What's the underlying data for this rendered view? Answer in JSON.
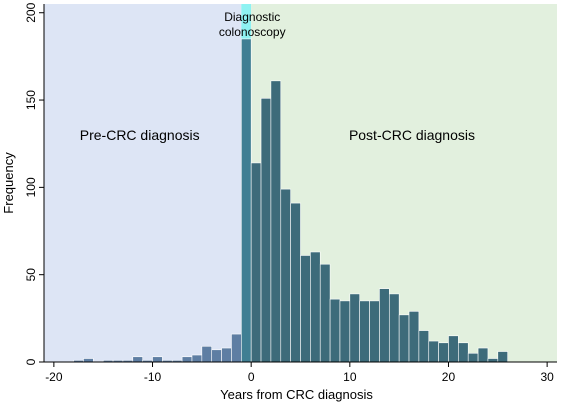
{
  "chart_data": {
    "type": "bar",
    "xlabel": "Years from CRC diagnosis",
    "ylabel": "Frequency",
    "xlim": [
      -21,
      31
    ],
    "ylim": [
      0,
      205
    ],
    "xticks": [
      -20,
      -10,
      0,
      10,
      20,
      30
    ],
    "yticks": [
      0,
      50,
      100,
      150,
      200
    ],
    "bin_width": 1,
    "bars": [
      {
        "x": -17.5,
        "y": 1
      },
      {
        "x": -16.5,
        "y": 2
      },
      {
        "x": -15.5,
        "y": 0
      },
      {
        "x": -14.5,
        "y": 1
      },
      {
        "x": -13.5,
        "y": 1
      },
      {
        "x": -12.5,
        "y": 1
      },
      {
        "x": -11.5,
        "y": 3
      },
      {
        "x": -10.5,
        "y": 1
      },
      {
        "x": -9.5,
        "y": 3
      },
      {
        "x": -8.5,
        "y": 1
      },
      {
        "x": -7.5,
        "y": 1
      },
      {
        "x": -6.5,
        "y": 3
      },
      {
        "x": -5.5,
        "y": 4
      },
      {
        "x": -4.5,
        "y": 9
      },
      {
        "x": -3.5,
        "y": 7
      },
      {
        "x": -2.5,
        "y": 8
      },
      {
        "x": -1.5,
        "y": 16
      },
      {
        "x": -0.5,
        "y": 185
      },
      {
        "x": 0.5,
        "y": 114
      },
      {
        "x": 1.5,
        "y": 151
      },
      {
        "x": 2.5,
        "y": 161
      },
      {
        "x": 3.5,
        "y": 99
      },
      {
        "x": 4.5,
        "y": 91
      },
      {
        "x": 5.5,
        "y": 61
      },
      {
        "x": 6.5,
        "y": 63
      },
      {
        "x": 7.5,
        "y": 56
      },
      {
        "x": 8.5,
        "y": 36
      },
      {
        "x": 9.5,
        "y": 35
      },
      {
        "x": 10.5,
        "y": 39
      },
      {
        "x": 11.5,
        "y": 35
      },
      {
        "x": 12.5,
        "y": 35
      },
      {
        "x": 13.5,
        "y": 42
      },
      {
        "x": 14.5,
        "y": 39
      },
      {
        "x": 15.5,
        "y": 27
      },
      {
        "x": 16.5,
        "y": 29
      },
      {
        "x": 17.5,
        "y": 18
      },
      {
        "x": 18.5,
        "y": 12
      },
      {
        "x": 19.5,
        "y": 11
      },
      {
        "x": 20.5,
        "y": 15
      },
      {
        "x": 21.5,
        "y": 11
      },
      {
        "x": 22.5,
        "y": 5
      },
      {
        "x": 23.5,
        "y": 8
      },
      {
        "x": 24.5,
        "y": 2
      },
      {
        "x": 25.5,
        "y": 6
      }
    ],
    "regions": [
      {
        "label": "Pre-CRC diagnosis",
        "x0": -21,
        "x1": -1,
        "color": "#dde5f5"
      },
      {
        "label": "Diagnostic colonoscopy",
        "x0": -1,
        "x1": 0,
        "color": "#8ef2f2"
      },
      {
        "label": "Post-CRC diagnosis",
        "x0": 0,
        "x1": 31,
        "color": "#e2f0de"
      }
    ],
    "annotation_lines": [
      "Diagnostic",
      "colonoscopy"
    ],
    "bar_color": "#3d6b7a",
    "bar_color_pre": "#5e7ea3",
    "bar_color_diag": "#3f7f93",
    "grid": false,
    "legend": "none"
  }
}
